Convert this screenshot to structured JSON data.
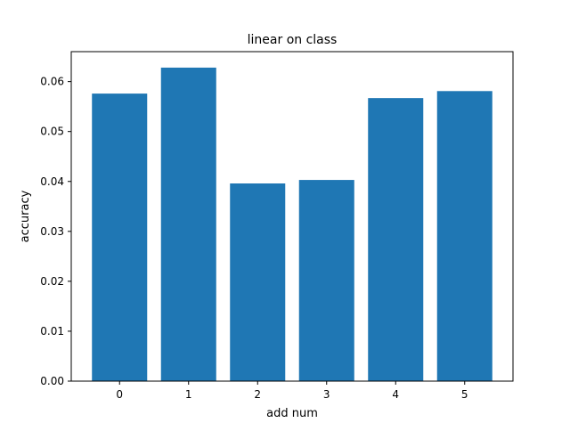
{
  "chart_data": {
    "type": "bar",
    "title": "linear on class",
    "xlabel": "add num",
    "ylabel": "accuracy",
    "categories": [
      "0",
      "1",
      "2",
      "3",
      "4",
      "5"
    ],
    "values": [
      0.0576,
      0.0628,
      0.0396,
      0.0403,
      0.0567,
      0.0581
    ],
    "ylim": [
      0,
      0.066
    ],
    "yticks": [
      0.0,
      0.01,
      0.02,
      0.03,
      0.04,
      0.05,
      0.06
    ],
    "ytick_labels": [
      "0.00",
      "0.01",
      "0.02",
      "0.03",
      "0.04",
      "0.05",
      "0.06"
    ],
    "bar_color": "#1f77b4",
    "grid": false,
    "legend": "none"
  }
}
